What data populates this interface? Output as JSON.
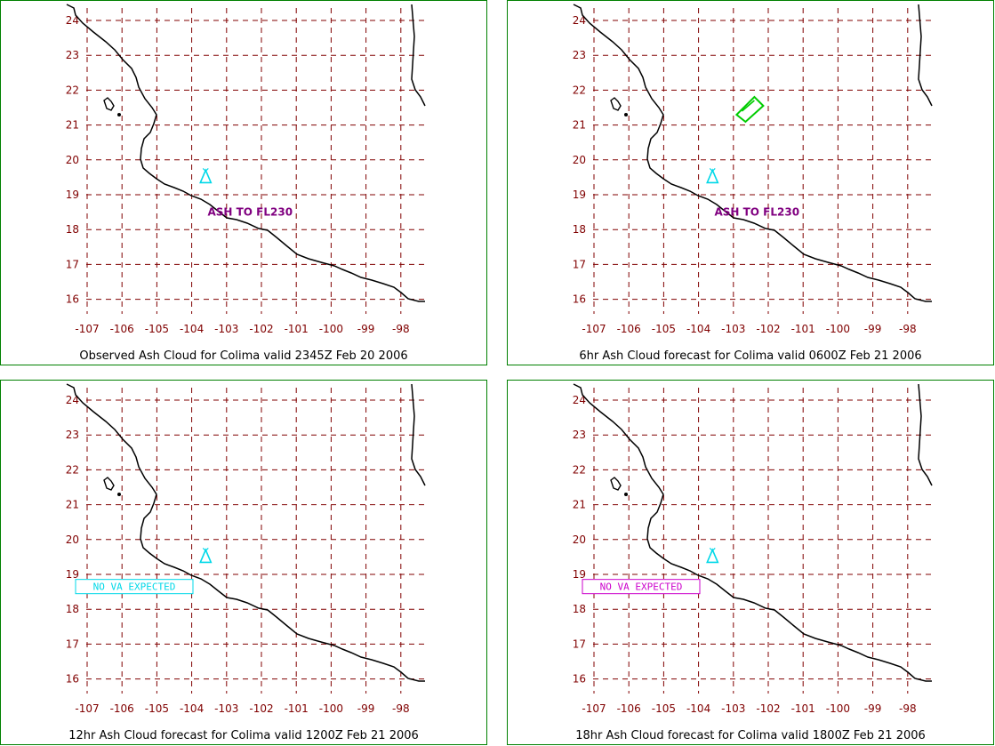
{
  "colors": {
    "frame": "#008000",
    "grid": "#800000",
    "coast": "#000000",
    "volcano": "#00d8e8",
    "ash_polygon": "#00cc00",
    "annotation": "#800080",
    "box_cyan": "#00d8e8",
    "box_magenta": "#cc00cc"
  },
  "axes": {
    "lat_labels": [
      "24",
      "23",
      "22",
      "21",
      "20",
      "19",
      "18",
      "17",
      "16"
    ],
    "lon_labels": [
      "-107",
      "-106",
      "-105",
      "-104",
      "-103",
      "-102",
      "-101",
      "-100",
      "-99",
      "-98"
    ]
  },
  "panels": [
    {
      "caption": "Observed Ash Cloud for Colima valid 2345Z Feb 20 2006",
      "volcano_icon": "volcano-icon",
      "annotation": "ASH TO FL230",
      "box": "",
      "ash_polygon": false
    },
    {
      "caption": "6hr Ash Cloud forecast for Colima valid 0600Z Feb 21 2006",
      "volcano_icon": "volcano-icon",
      "annotation": "ASH TO FL230",
      "box": "",
      "ash_polygon": true
    },
    {
      "caption": "12hr Ash Cloud forecast for Colima valid 1200Z Feb 21 2006",
      "volcano_icon": "volcano-icon",
      "annotation": "",
      "box": "NO VA EXPECTED",
      "box_color": "cyan",
      "ash_polygon": false
    },
    {
      "caption": "18hr Ash Cloud forecast for Colima valid 1800Z Feb 21 2006",
      "volcano_icon": "volcano-icon",
      "annotation": "",
      "box": "NO VA EXPECTED",
      "box_color": "magenta",
      "ash_polygon": false
    }
  ]
}
